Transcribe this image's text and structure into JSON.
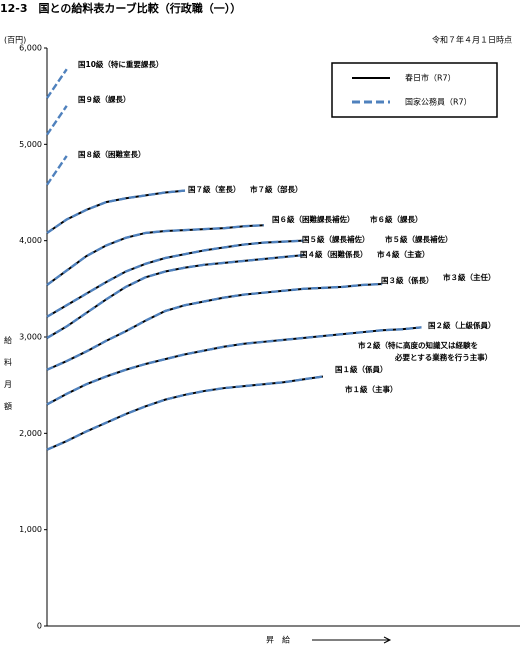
{
  "chart_data": {
    "type": "line",
    "title": "12-3　国との給料表カーブ比較（行政職（一））",
    "date_note": "令和７年４月１日時点",
    "y_unit": "(百円)",
    "y_label": "給料月額",
    "x_label": "昇　給",
    "xlim": [
      0,
      24
    ],
    "x": [
      0,
      1,
      2,
      3,
      4,
      5,
      6,
      7,
      8,
      9,
      10,
      11,
      12,
      13,
      14,
      15,
      16,
      17,
      18,
      19
    ],
    "ylim": [
      0,
      6000
    ],
    "yticks": [
      0,
      {
        "value": 1000,
        "label": "1,000"
      },
      {
        "value": 2000,
        "label": "2,000"
      },
      {
        "value": 3000,
        "label": "3,000"
      },
      {
        "value": 4000,
        "label": "4,000"
      },
      {
        "value": 5000,
        "label": "5,000"
      },
      {
        "value": 6000,
        "label": "6,000"
      }
    ],
    "series": [
      {
        "name": "春日市（R7）",
        "color": "#000000",
        "dashed": false,
        "curves": [
          {
            "label": "市１級（主事）",
            "values": [
              1830,
              1920,
              2020,
              2110,
              2200,
              2280,
              2350,
              2400,
              2440,
              2470,
              2490,
              2510,
              2530,
              2560,
              2590,
              null,
              null,
              null,
              null,
              null
            ]
          },
          {
            "label": [
              "市２級（特に高度の知識又は経験を",
              "必要とする業務を行う主事）"
            ],
            "values": [
              2300,
              2410,
              2510,
              2590,
              2660,
              2720,
              2770,
              2820,
              2860,
              2900,
              2930,
              2950,
              2970,
              2990,
              3010,
              3030,
              3050,
              3070,
              3080,
              3100
            ]
          },
          {
            "label": "市３級（主任）",
            "values": [
              2660,
              2750,
              2850,
              2960,
              3060,
              3170,
              3270,
              3330,
              3370,
              3410,
              3440,
              3460,
              3480,
              3500,
              3510,
              3520,
              3540,
              3550,
              null,
              null
            ]
          },
          {
            "label": "市４級（主査）",
            "values": [
              2990,
              3110,
              3250,
              3390,
              3520,
              3620,
              3680,
              3720,
              3750,
              3770,
              3790,
              3810,
              3830,
              3850,
              null,
              null,
              null,
              null,
              null,
              null
            ]
          },
          {
            "label": "市５級（課長補佐）",
            "values": [
              3210,
              3330,
              3450,
              3570,
              3680,
              3760,
              3820,
              3860,
              3900,
              3930,
              3960,
              3980,
              3990,
              4000,
              null,
              null,
              null,
              null,
              null,
              null
            ]
          },
          {
            "label": "市６級（課長）",
            "values": [
              3540,
              3690,
              3840,
              3950,
              4030,
              4080,
              4100,
              4110,
              4120,
              4130,
              4150,
              4160,
              null,
              null,
              null,
              null,
              null,
              null,
              null,
              null
            ]
          },
          {
            "label": "市７級（部長）",
            "values": [
              4080,
              4220,
              4320,
              4400,
              4440,
              4470,
              4500,
              4520,
              null,
              null,
              null,
              null,
              null,
              null,
              null,
              null,
              null,
              null,
              null,
              null
            ]
          }
        ]
      },
      {
        "name": "国家公務員（R7）",
        "color": "#4f81bd",
        "dashed": true,
        "curves": [
          {
            "label": "国１級（係員）",
            "values": [
              1830,
              1920,
              2020,
              2110,
              2200,
              2280,
              2350,
              2400,
              2440,
              2470,
              2490,
              2510,
              2530,
              2560,
              2590,
              null,
              null,
              null,
              null,
              null
            ]
          },
          {
            "label": "国２級（上級係員）",
            "values": [
              2300,
              2410,
              2510,
              2590,
              2660,
              2720,
              2770,
              2820,
              2860,
              2900,
              2930,
              2950,
              2970,
              2990,
              3010,
              3030,
              3050,
              3070,
              3080,
              3100
            ]
          },
          {
            "label": "国３級（係長）",
            "values": [
              2660,
              2750,
              2850,
              2960,
              3060,
              3170,
              3270,
              3330,
              3370,
              3410,
              3440,
              3460,
              3480,
              3500,
              3510,
              3520,
              3540,
              3550,
              null,
              null
            ]
          },
          {
            "label": "国４級（困難係長）",
            "values": [
              2990,
              3110,
              3250,
              3390,
              3520,
              3620,
              3680,
              3720,
              3750,
              3770,
              3790,
              3810,
              3830,
              3850,
              null,
              null,
              null,
              null,
              null,
              null
            ]
          },
          {
            "label": "国５級（課長補佐）",
            "values": [
              3210,
              3330,
              3450,
              3570,
              3680,
              3760,
              3820,
              3860,
              3900,
              3930,
              3960,
              3980,
              3990,
              4000,
              null,
              null,
              null,
              null,
              null,
              null
            ]
          },
          {
            "label": "国６級（困難課長補佐）",
            "values": [
              3540,
              3690,
              3840,
              3950,
              4030,
              4080,
              4100,
              4110,
              4120,
              4130,
              4150,
              4160,
              null,
              null,
              null,
              null,
              null,
              null,
              null,
              null
            ]
          },
          {
            "label": "国７級（室長）",
            "values": [
              4080,
              4220,
              4320,
              4400,
              4440,
              4470,
              4500,
              4520,
              null,
              null,
              null,
              null,
              null,
              null,
              null,
              null,
              null,
              null,
              null,
              null
            ]
          },
          {
            "label": "国８級（困難室長）",
            "values": [
              4580,
              4880,
              null,
              null,
              null,
              null,
              null,
              null,
              null,
              null,
              null,
              null,
              null,
              null,
              null,
              null,
              null,
              null,
              null,
              null
            ]
          },
          {
            "label": "国９級（課長）",
            "values": [
              5100,
              5400,
              null,
              null,
              null,
              null,
              null,
              null,
              null,
              null,
              null,
              null,
              null,
              null,
              null,
              null,
              null,
              null,
              null,
              null
            ]
          },
          {
            "label": "国10級（特に重要課長）",
            "values": [
              5480,
              5780,
              null,
              null,
              null,
              null,
              null,
              null,
              null,
              null,
              null,
              null,
              null,
              null,
              null,
              null,
              null,
              null,
              null,
              null
            ]
          }
        ]
      }
    ]
  }
}
